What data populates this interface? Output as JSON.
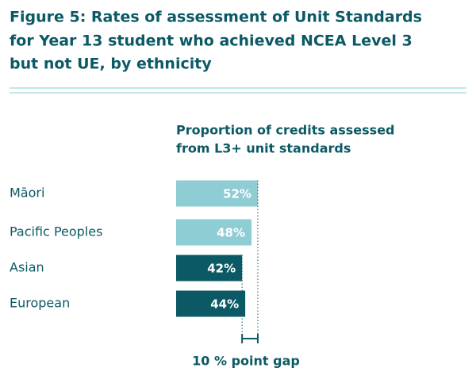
{
  "chart_data": {
    "type": "bar",
    "title": [
      "Figure 5: Rates of assessment of Unit Standards",
      "for Year 13 student who achieved NCEA Level 3",
      "but not UE, by ethnicity"
    ],
    "subtitle": [
      "Proportion of credits assessed",
      "from L3+ unit standards"
    ],
    "categories": [
      "Māori",
      "Pacific Peoples",
      "Asian",
      "European"
    ],
    "values": [
      52,
      48,
      42,
      44
    ],
    "value_labels": [
      "52%",
      "48%",
      "42%",
      "44%"
    ],
    "colors": [
      "#8ecdd3",
      "#8ecdd3",
      "#0b5964",
      "#0b5964"
    ],
    "annotation": "10 % point gap"
  }
}
